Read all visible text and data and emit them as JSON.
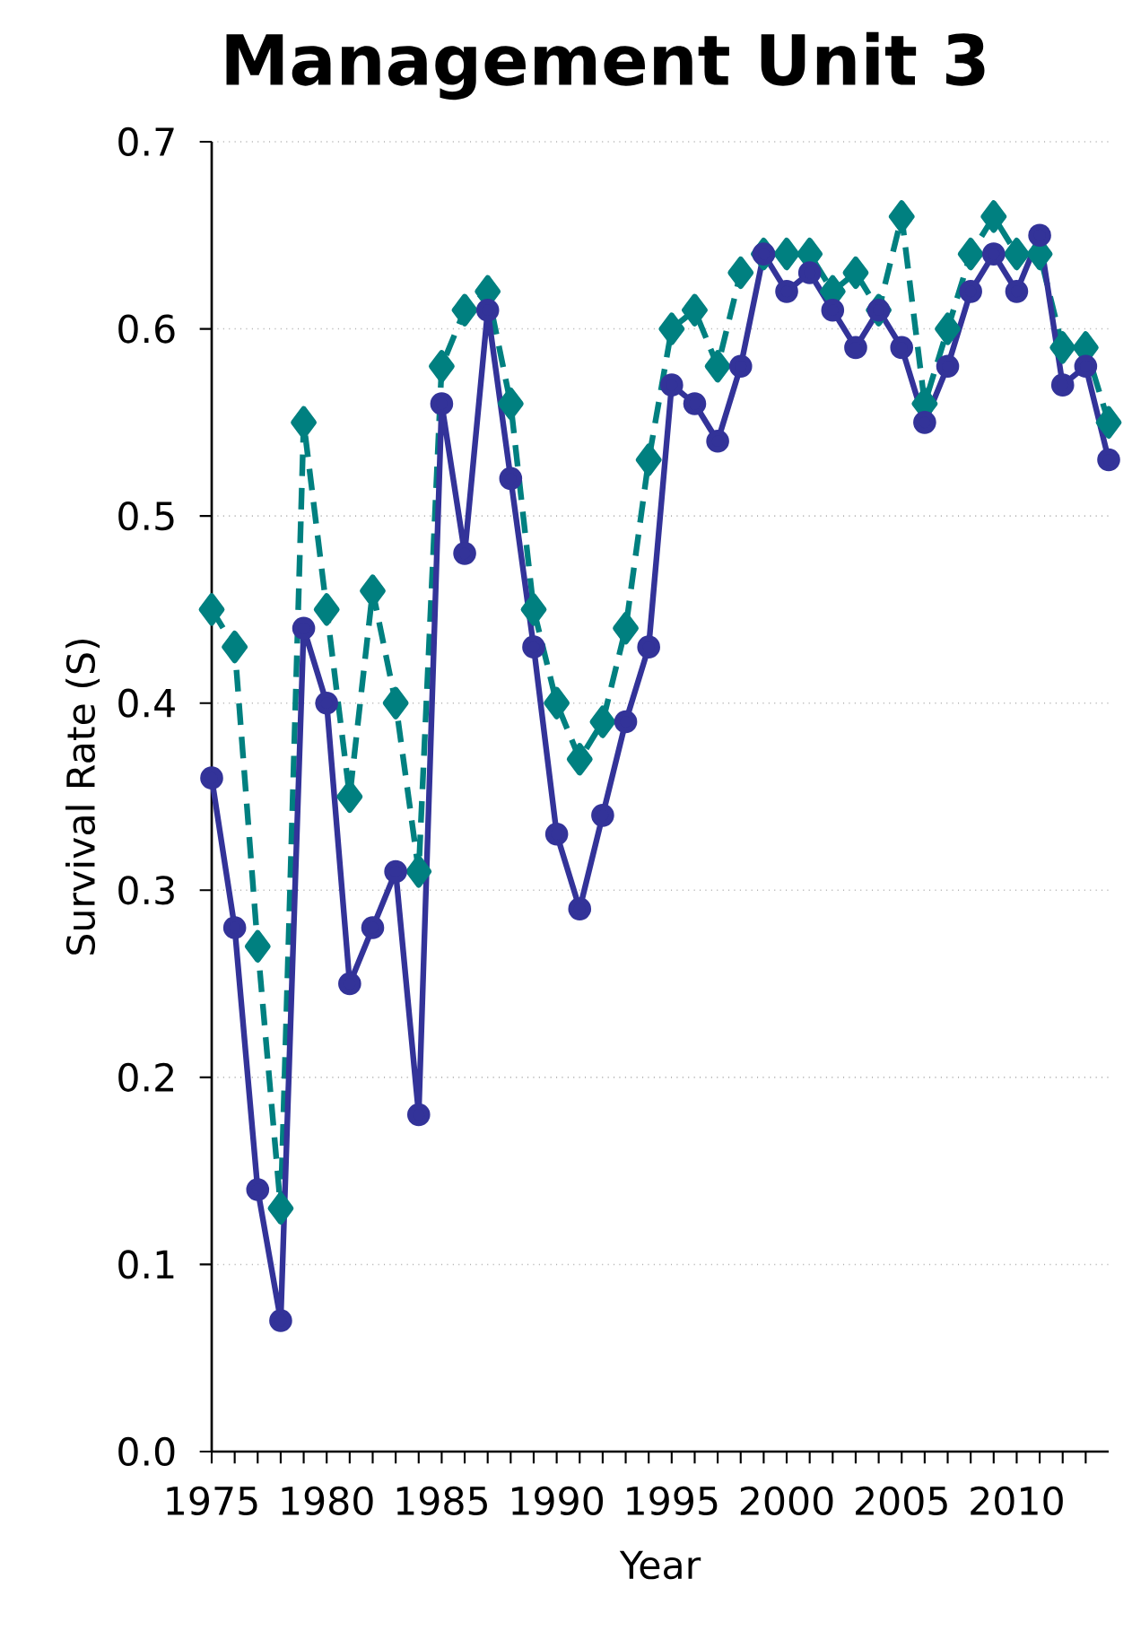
{
  "chart_data": {
    "type": "line",
    "title": "Management Unit 3",
    "xlabel": "Year",
    "ylabel": "Survival Rate (S)",
    "x": [
      1975,
      1976,
      1977,
      1978,
      1979,
      1980,
      1981,
      1982,
      1983,
      1984,
      1985,
      1986,
      1987,
      1988,
      1989,
      1990,
      1991,
      1992,
      1993,
      1994,
      1995,
      1996,
      1997,
      1998,
      1999,
      2000,
      2001,
      2002,
      2003,
      2004,
      2005,
      2006,
      2007,
      2008,
      2009,
      2010,
      2011,
      2012,
      2013,
      2014
    ],
    "series": [
      {
        "color": "#008080",
        "marker": "diamond",
        "line_style": "dashed",
        "values": [
          0.45,
          0.43,
          0.27,
          0.13,
          0.55,
          0.45,
          0.35,
          0.46,
          0.4,
          0.31,
          0.58,
          0.61,
          0.62,
          0.56,
          0.45,
          0.4,
          0.37,
          0.39,
          0.44,
          0.53,
          0.6,
          0.61,
          0.58,
          0.63,
          0.64,
          0.64,
          0.64,
          0.62,
          0.63,
          0.61,
          0.66,
          0.56,
          0.6,
          0.64,
          0.66,
          0.64,
          0.64,
          0.59,
          0.59,
          0.55
        ]
      },
      {
        "color": "#333399",
        "marker": "circle",
        "line_style": "solid",
        "values": [
          0.36,
          0.28,
          0.14,
          0.07,
          0.44,
          0.4,
          0.25,
          0.28,
          0.31,
          0.18,
          0.56,
          0.48,
          0.61,
          0.52,
          0.43,
          0.33,
          0.29,
          0.34,
          0.39,
          0.43,
          0.57,
          0.56,
          0.54,
          0.58,
          0.64,
          0.62,
          0.63,
          0.61,
          0.59,
          0.61,
          0.59,
          0.55,
          0.58,
          0.62,
          0.64,
          0.62,
          0.65,
          0.57,
          0.58,
          0.53
        ]
      }
    ],
    "xlim": [
      1975,
      2014
    ],
    "xticks": [
      {
        "value": 1975,
        "label": "1975"
      },
      {
        "value": 1976,
        "label": null
      },
      {
        "value": 1977,
        "label": null
      },
      {
        "value": 1978,
        "label": null
      },
      {
        "value": 1979,
        "label": null
      },
      {
        "value": 1980,
        "label": "1980"
      },
      {
        "value": 1981,
        "label": null
      },
      {
        "value": 1982,
        "label": null
      },
      {
        "value": 1983,
        "label": null
      },
      {
        "value": 1984,
        "label": null
      },
      {
        "value": 1985,
        "label": "1985"
      },
      {
        "value": 1986,
        "label": null
      },
      {
        "value": 1987,
        "label": null
      },
      {
        "value": 1988,
        "label": null
      },
      {
        "value": 1989,
        "label": null
      },
      {
        "value": 1990,
        "label": "1990"
      },
      {
        "value": 1991,
        "label": null
      },
      {
        "value": 1992,
        "label": null
      },
      {
        "value": 1993,
        "label": null
      },
      {
        "value": 1994,
        "label": null
      },
      {
        "value": 1995,
        "label": "1995"
      },
      {
        "value": 1996,
        "label": null
      },
      {
        "value": 1997,
        "label": null
      },
      {
        "value": 1998,
        "label": null
      },
      {
        "value": 1999,
        "label": null
      },
      {
        "value": 2000,
        "label": "2000"
      },
      {
        "value": 2001,
        "label": null
      },
      {
        "value": 2002,
        "label": null
      },
      {
        "value": 2003,
        "label": null
      },
      {
        "value": 2004,
        "label": null
      },
      {
        "value": 2005,
        "label": "2005"
      },
      {
        "value": 2006,
        "label": null
      },
      {
        "value": 2007,
        "label": null
      },
      {
        "value": 2008,
        "label": null
      },
      {
        "value": 2009,
        "label": null
      },
      {
        "value": 2010,
        "label": "2010"
      },
      {
        "value": 2011,
        "label": null
      },
      {
        "value": 2012,
        "label": null
      },
      {
        "value": 2013,
        "label": null
      }
    ],
    "ylim": [
      0,
      0.7
    ],
    "yticks": [
      {
        "value": 0,
        "label": "0.0"
      },
      {
        "value": 0.1,
        "label": "0.1"
      },
      {
        "value": 0.2,
        "label": "0.2"
      },
      {
        "value": 0.3,
        "label": "0.3"
      },
      {
        "value": 0.4,
        "label": "0.4"
      },
      {
        "value": 0.5,
        "label": "0.5"
      },
      {
        "value": 0.6,
        "label": "0.6"
      },
      {
        "value": 0.7,
        "label": "0.7"
      }
    ],
    "grid": "y",
    "legend": false
  }
}
